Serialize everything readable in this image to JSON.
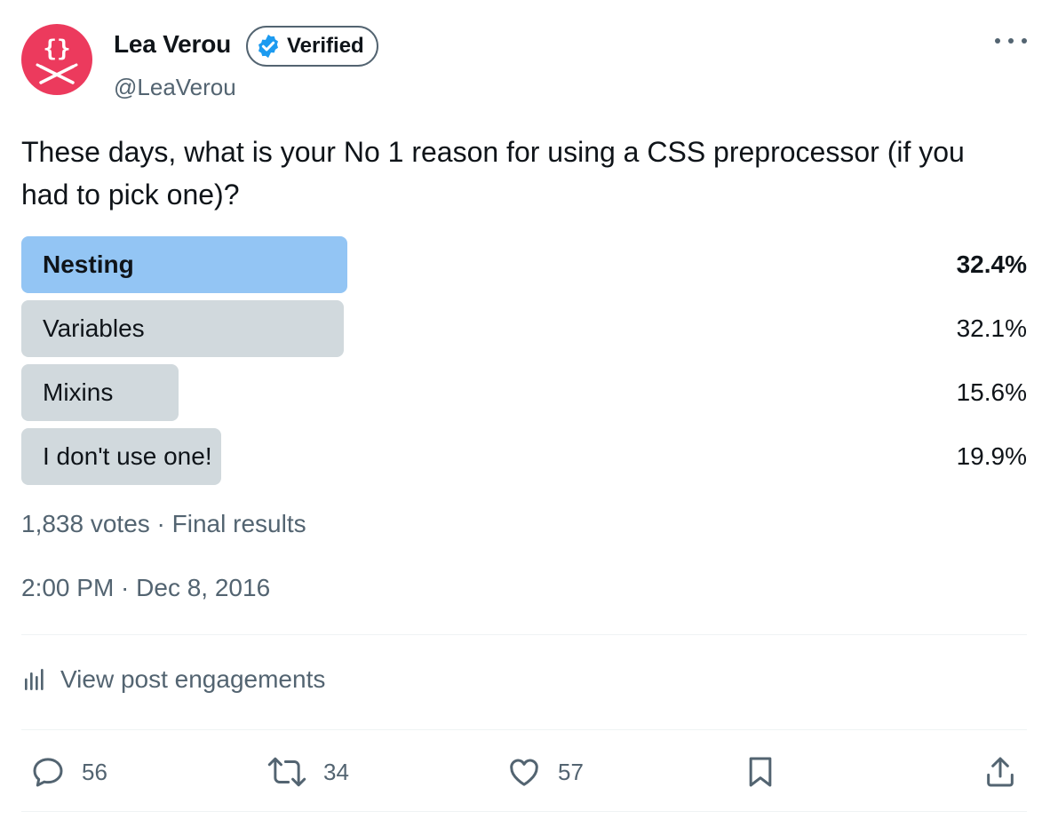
{
  "author": {
    "name": "Lea Verou",
    "verified_label": "Verified",
    "handle": "@LeaVerou",
    "avatar_text": "{}"
  },
  "tweet": {
    "text": "These days, what is your No 1 reason for using a CSS preprocessor (if you had to pick one)?"
  },
  "poll": {
    "options": [
      {
        "label": "Nesting",
        "percent_text": "32.4%",
        "percent": 32.4,
        "winner": true
      },
      {
        "label": "Variables",
        "percent_text": "32.1%",
        "percent": 32.1,
        "winner": false
      },
      {
        "label": "Mixins",
        "percent_text": "15.6%",
        "percent": 15.6,
        "winner": false
      },
      {
        "label": "I don't use one!",
        "percent_text": "19.9%",
        "percent": 19.9,
        "winner": false
      }
    ],
    "meta": "1,838 votes · Final results"
  },
  "timestamp": "2:00 PM · Dec 8, 2016",
  "engagements_label": "View post engagements",
  "actions": {
    "replies": "56",
    "reposts": "34",
    "likes": "57"
  },
  "colors": {
    "avatar": "#ec3a5d",
    "verified": "#1d9bf0",
    "poll_winner": "#93c5f4",
    "poll_other": "#d1d9dd",
    "muted_text": "#536471"
  },
  "icons": {
    "verified": "verified-check-icon",
    "more": "more-dots-icon",
    "analytics": "bar-chart-icon",
    "reply": "speech-bubble-icon",
    "repost": "repost-arrows-icon",
    "like": "heart-icon",
    "bookmark": "bookmark-icon",
    "share": "share-upload-icon"
  }
}
